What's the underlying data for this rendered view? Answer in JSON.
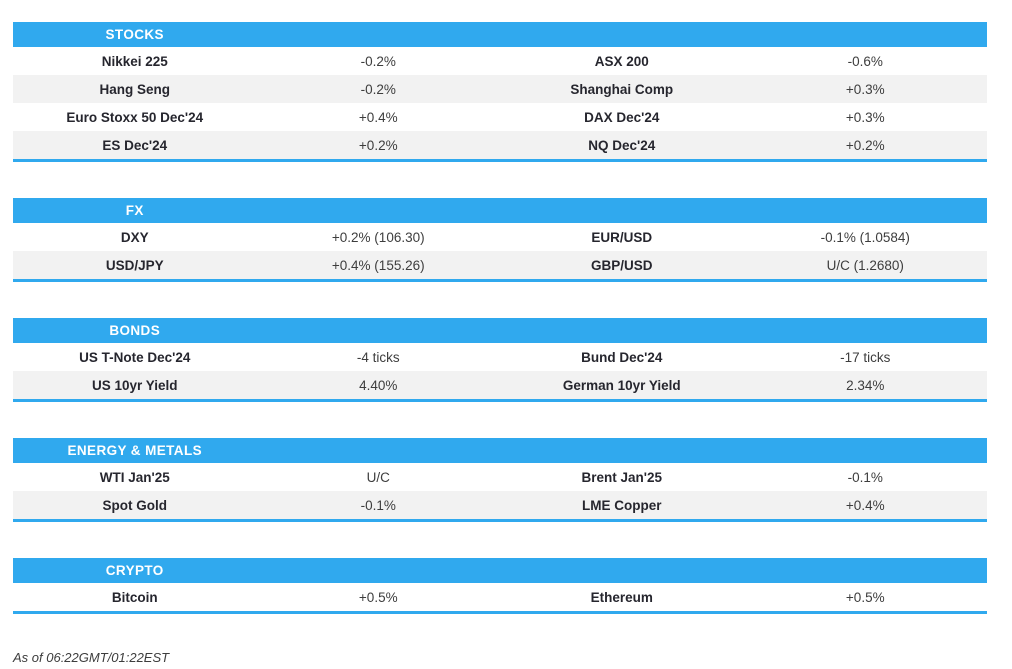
{
  "colors": {
    "accent_blue": "#30A9EE",
    "row_alt_gray": "#F2F2F2",
    "header_text": "#FFFFFF",
    "name_text": "#26262E",
    "value_text": "#3D3D3D"
  },
  "sections": [
    {
      "title": "STOCKS",
      "rows": [
        {
          "left_name": "Nikkei 225",
          "left_value": "-0.2%",
          "right_name": "ASX 200",
          "right_value": "-0.6%"
        },
        {
          "left_name": "Hang Seng",
          "left_value": "-0.2%",
          "right_name": "Shanghai Comp",
          "right_value": "+0.3%"
        },
        {
          "left_name": "Euro Stoxx 50 Dec'24",
          "left_value": "+0.4%",
          "right_name": "DAX Dec'24",
          "right_value": "+0.3%"
        },
        {
          "left_name": "ES Dec'24",
          "left_value": "+0.2%",
          "right_name": "NQ Dec'24",
          "right_value": "+0.2%"
        }
      ]
    },
    {
      "title": "FX",
      "rows": [
        {
          "left_name": "DXY",
          "left_value": "+0.2% (106.30)",
          "right_name": "EUR/USD",
          "right_value": "-0.1% (1.0584)"
        },
        {
          "left_name": "USD/JPY",
          "left_value": "+0.4% (155.26)",
          "right_name": "GBP/USD",
          "right_value": "U/C (1.2680)"
        }
      ]
    },
    {
      "title": "BONDS",
      "rows": [
        {
          "left_name": "US T-Note Dec'24",
          "left_value": "-4 ticks",
          "right_name": "Bund Dec'24",
          "right_value": "-17 ticks"
        },
        {
          "left_name": "US 10yr Yield",
          "left_value": "4.40%",
          "right_name": "German 10yr Yield",
          "right_value": "2.34%"
        }
      ]
    },
    {
      "title": "ENERGY & METALS",
      "rows": [
        {
          "left_name": "WTI Jan'25",
          "left_value": "U/C",
          "right_name": "Brent Jan'25",
          "right_value": "-0.1%"
        },
        {
          "left_name": "Spot Gold",
          "left_value": "-0.1%",
          "right_name": "LME Copper",
          "right_value": "+0.4%"
        }
      ]
    },
    {
      "title": "CRYPTO",
      "rows": [
        {
          "left_name": "Bitcoin",
          "left_value": "+0.5%",
          "right_name": "Ethereum",
          "right_value": "+0.5%"
        }
      ]
    }
  ],
  "footer": {
    "as_of": "As of 06:22GMT/01:22EST"
  }
}
